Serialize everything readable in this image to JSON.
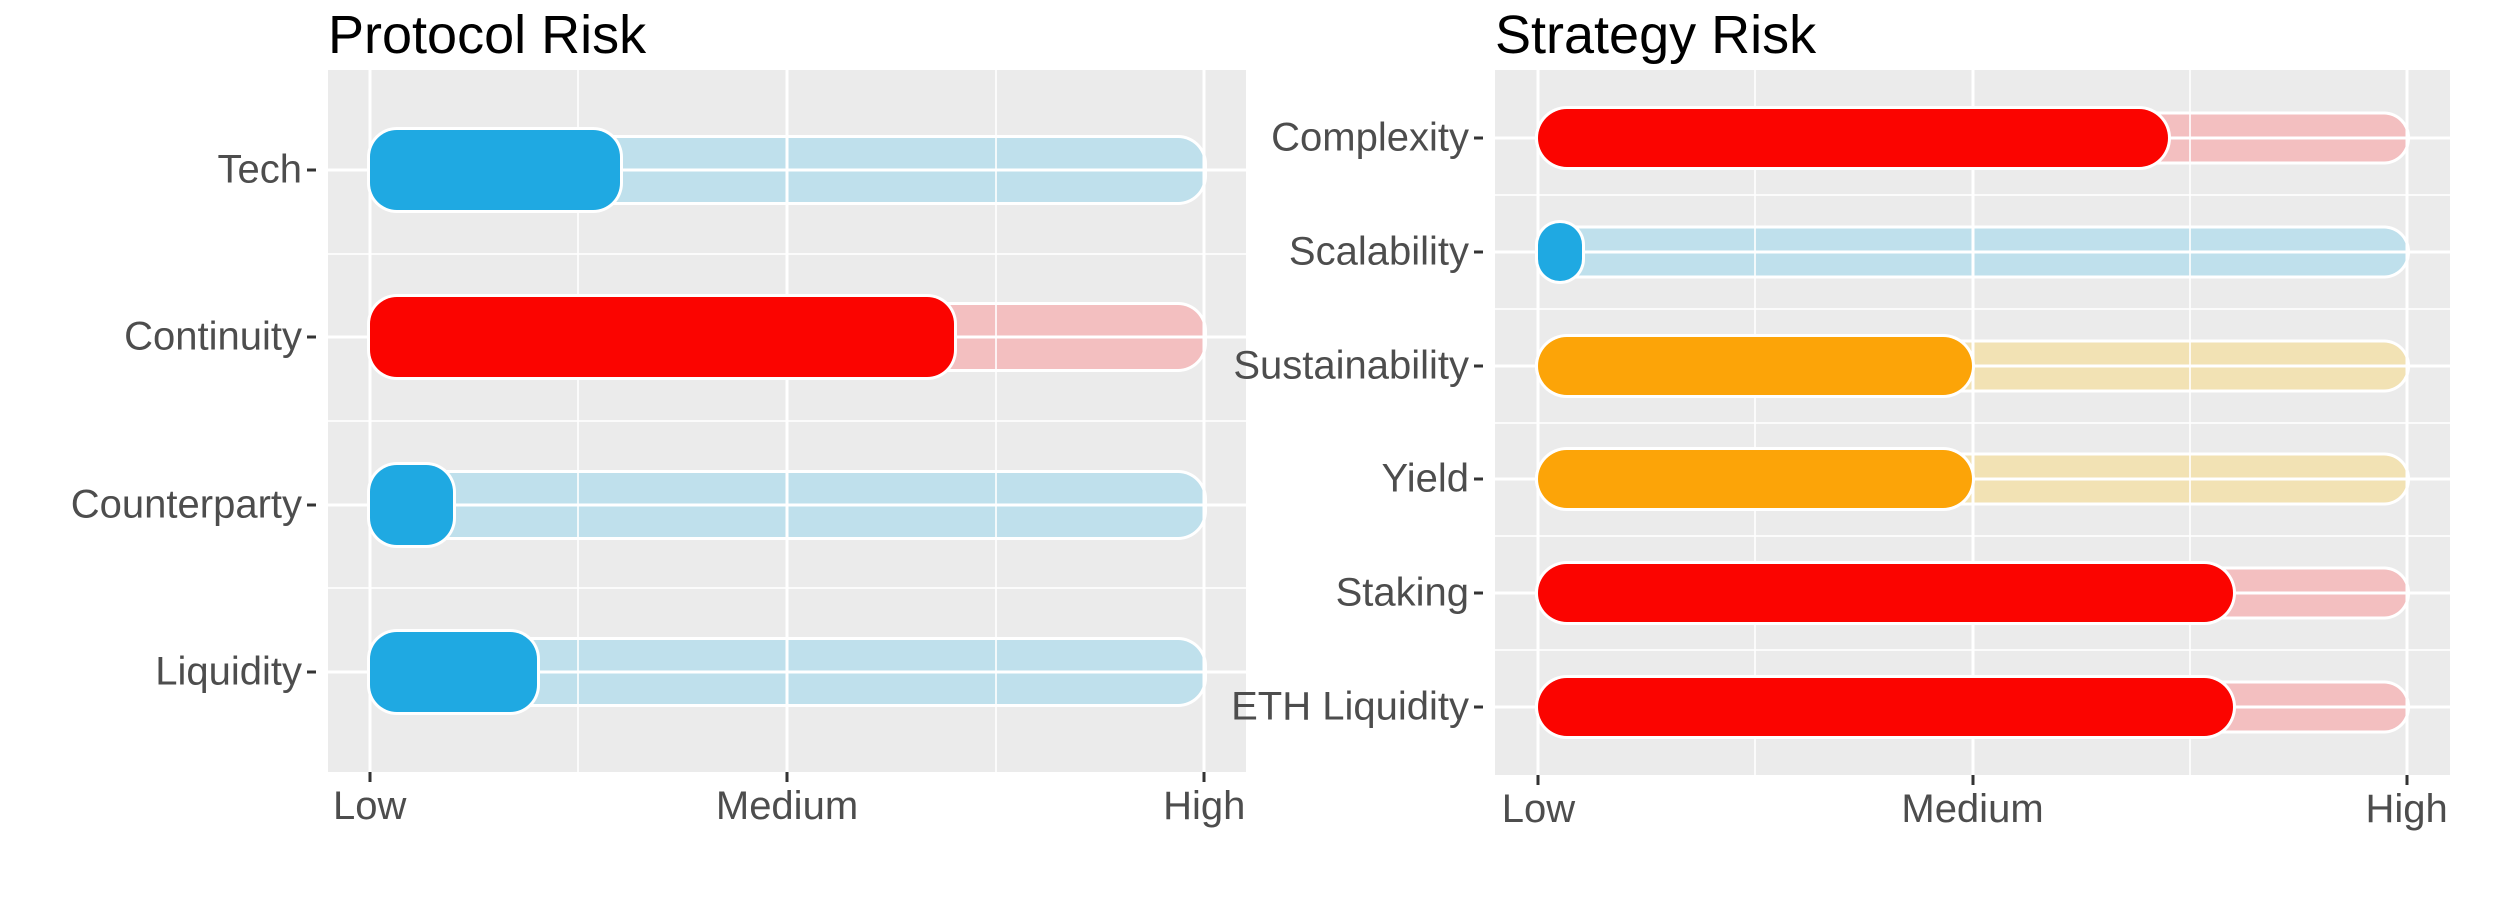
{
  "palette": {
    "blue": "#1FA9E2",
    "red": "#FB0400",
    "orange": "#FCA408",
    "blue_track": "#BFE0EC",
    "red_track": "#F3BFC0",
    "orange_track": "#F2E2B4",
    "panel_bg": "#EBEBEB",
    "grid_color": "#FFFFFF",
    "tick_color": "#333333",
    "axis_text_color": "#4D4D4D",
    "title_color": "#000000"
  },
  "value_scale": {
    "Low": 1,
    "Medium": 2,
    "High": 3
  },
  "chart_data": [
    {
      "type": "bar",
      "title": "Protocol Risk",
      "orientation": "horizontal",
      "categories": [
        "Tech",
        "Continuity",
        "Counterparty",
        "Liquidity"
      ],
      "values": [
        1.6,
        2.4,
        1.2,
        1.4
      ],
      "colors": [
        "blue",
        "red",
        "blue",
        "blue"
      ],
      "track_range": [
        1,
        3
      ],
      "xlim": [
        0.9,
        3.1
      ],
      "x_tick_values": [
        1,
        2,
        3
      ],
      "x_tick_labels": [
        "Low",
        "Medium",
        "High"
      ],
      "grid": "white major and minor gridlines on gray panel",
      "legend": "none"
    },
    {
      "type": "bar",
      "title": "Strategy Risk",
      "orientation": "horizontal",
      "categories": [
        "Complexity",
        "Scalability",
        "Sustainability",
        "Yield",
        "Staking",
        "ETH Liquidity"
      ],
      "values": [
        2.45,
        1.1,
        2.0,
        2.0,
        2.6,
        2.6
      ],
      "colors": [
        "red",
        "blue",
        "orange",
        "orange",
        "red",
        "red"
      ],
      "track_range": [
        1,
        3
      ],
      "xlim": [
        0.9,
        3.1
      ],
      "x_tick_values": [
        1,
        2,
        3
      ],
      "x_tick_labels": [
        "Low",
        "Medium",
        "High"
      ],
      "grid": "white major and minor gridlines on gray panel",
      "legend": "none"
    }
  ]
}
